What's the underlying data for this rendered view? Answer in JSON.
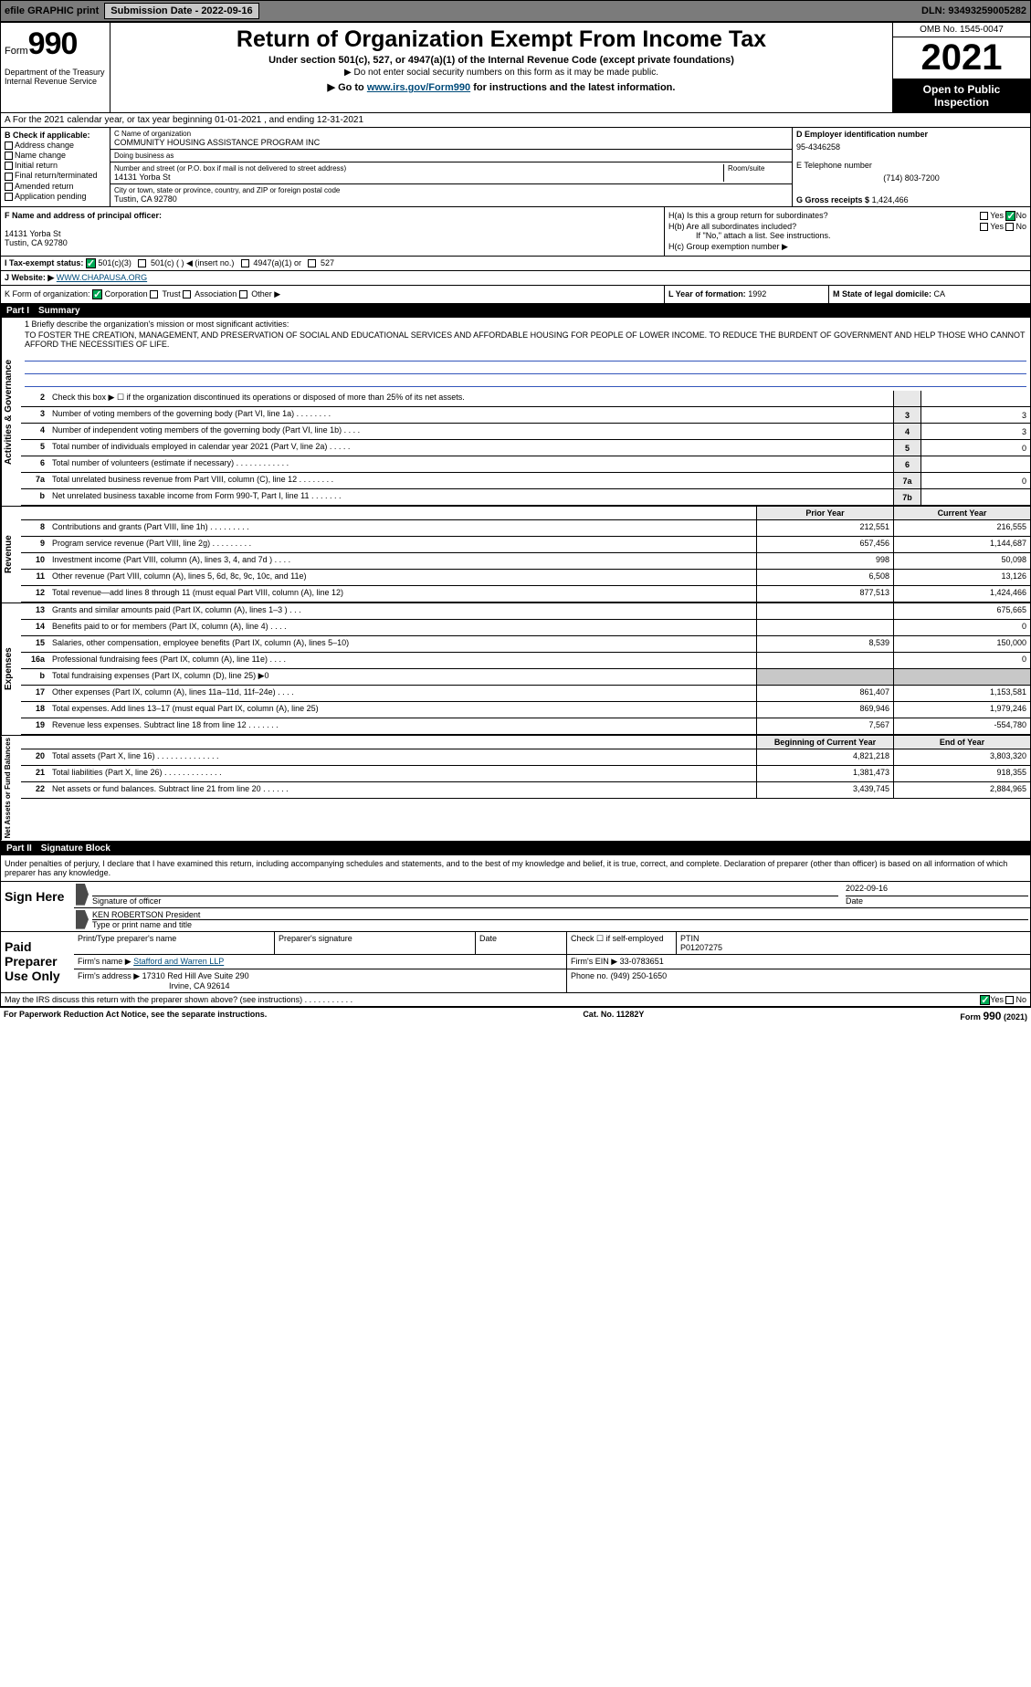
{
  "topbar": {
    "efile": "efile GRAPHIC print",
    "submission_label": "Submission Date - 2022-09-16",
    "dln_label": "DLN: 93493259005282"
  },
  "header": {
    "form_word": "Form",
    "form_num": "990",
    "dept": "Department of the Treasury\nInternal Revenue Service",
    "title": "Return of Organization Exempt From Income Tax",
    "subtitle": "Under section 501(c), 527, or 4947(a)(1) of the Internal Revenue Code (except private foundations)",
    "sub2": "▶ Do not enter social security numbers on this form as it may be made public.",
    "goto_prefix": "▶ Go to ",
    "goto_link": "www.irs.gov/Form990",
    "goto_suffix": " for instructions and the latest information.",
    "omb": "OMB No. 1545-0047",
    "year": "2021",
    "open": "Open to Public Inspection"
  },
  "row_a": "A For the 2021 calendar year, or tax year beginning 01-01-2021    , and ending 12-31-2021",
  "col_b": {
    "header": "B Check if applicable:",
    "items": [
      "Address change",
      "Name change",
      "Initial return",
      "Final return/terminated",
      "Amended return",
      "Application pending"
    ]
  },
  "col_c": {
    "name_label": "C Name of organization",
    "name": "COMMUNITY HOUSING ASSISTANCE PROGRAM INC",
    "dba_label": "Doing business as",
    "dba": "",
    "street_label": "Number and street (or P.O. box if mail is not delivered to street address)",
    "room_label": "Room/suite",
    "street": "14131 Yorba St",
    "city_label": "City or town, state or province, country, and ZIP or foreign postal code",
    "city": "Tustin, CA  92780"
  },
  "col_d": {
    "ein_label": "D Employer identification number",
    "ein": "95-4346258",
    "phone_label": "E Telephone number",
    "phone": "(714) 803-7200",
    "gross_label": "G Gross receipts $",
    "gross": "1,424,466"
  },
  "row_f": {
    "f_label": "F Name and address of principal officer:",
    "f_addr1": "14131 Yorba St",
    "f_addr2": "Tustin, CA  92780",
    "ha": "H(a)  Is this a group return for subordinates?",
    "hb": "H(b)  Are all subordinates included?",
    "hb_note": "If \"No,\" attach a list. See instructions.",
    "hc": "H(c)  Group exemption number ▶",
    "yes": "Yes",
    "no": "No"
  },
  "row_i": {
    "label": "I  Tax-exempt status:",
    "opt1": "501(c)(3)",
    "opt2": "501(c) (   ) ◀ (insert no.)",
    "opt3": "4947(a)(1) or",
    "opt4": "527"
  },
  "row_j": {
    "label": "J  Website: ▶",
    "value": "WWW.CHAPAUSA.ORG"
  },
  "row_k": {
    "label": "K Form of organization:",
    "corp": "Corporation",
    "trust": "Trust",
    "assoc": "Association",
    "other": "Other ▶"
  },
  "row_l": {
    "label": "L Year of formation:",
    "value": "1992"
  },
  "row_m": {
    "label": "M State of legal domicile:",
    "value": "CA"
  },
  "part1": {
    "num": "Part I",
    "title": "Summary"
  },
  "mission": {
    "label": "1  Briefly describe the organization's mission or most significant activities:",
    "text": "TO FOSTER THE CREATION, MANAGEMENT, AND PRESERVATION OF SOCIAL AND EDUCATIONAL SERVICES AND AFFORDABLE HOUSING FOR PEOPLE OF LOWER INCOME. TO REDUCE THE BURDENT OF GOVERNMENT AND HELP THOSE WHO CANNOT AFFORD THE NECESSITIES OF LIFE."
  },
  "gov_lines": [
    {
      "n": "2",
      "t": "Check this box ▶ ☐ if the organization discontinued its operations or disposed of more than 25% of its net assets.",
      "box": "",
      "v": ""
    },
    {
      "n": "3",
      "t": "Number of voting members of the governing body (Part VI, line 1a)   .    .    .    .    .    .    .    .",
      "box": "3",
      "v": "3"
    },
    {
      "n": "4",
      "t": "Number of independent voting members of the governing body (Part VI, line 1b)   .    .    .    .",
      "box": "4",
      "v": "3"
    },
    {
      "n": "5",
      "t": "Total number of individuals employed in calendar year 2021 (Part V, line 2a)   .    .    .    .    .",
      "box": "5",
      "v": "0"
    },
    {
      "n": "6",
      "t": "Total number of volunteers (estimate if necessary)   .    .    .    .    .    .    .    .    .    .    .    .",
      "box": "6",
      "v": ""
    },
    {
      "n": "7a",
      "t": "Total unrelated business revenue from Part VIII, column (C), line 12   .    .    .    .    .    .    .    .",
      "box": "7a",
      "v": "0"
    },
    {
      "n": "b",
      "t": "Net unrelated business taxable income from Form 990-T, Part I, line 11   .    .    .    .    .    .    .",
      "box": "7b",
      "v": ""
    }
  ],
  "prior_year": "Prior Year",
  "current_year": "Current Year",
  "revenue_lines": [
    {
      "n": "8",
      "t": "Contributions and grants (Part VIII, line 1h)   .    .    .    .    .    .    .    .    .",
      "py": "212,551",
      "cy": "216,555"
    },
    {
      "n": "9",
      "t": "Program service revenue (Part VIII, line 2g)   .    .    .    .    .    .    .    .    .",
      "py": "657,456",
      "cy": "1,144,687"
    },
    {
      "n": "10",
      "t": "Investment income (Part VIII, column (A), lines 3, 4, and 7d )   .    .    .    .",
      "py": "998",
      "cy": "50,098"
    },
    {
      "n": "11",
      "t": "Other revenue (Part VIII, column (A), lines 5, 6d, 8c, 9c, 10c, and 11e)",
      "py": "6,508",
      "cy": "13,126"
    },
    {
      "n": "12",
      "t": "Total revenue—add lines 8 through 11 (must equal Part VIII, column (A), line 12)",
      "py": "877,513",
      "cy": "1,424,466"
    }
  ],
  "expense_lines": [
    {
      "n": "13",
      "t": "Grants and similar amounts paid (Part IX, column (A), lines 1–3 )   .    .    .",
      "py": "",
      "cy": "675,665"
    },
    {
      "n": "14",
      "t": "Benefits paid to or for members (Part IX, column (A), line 4)   .    .    .    .",
      "py": "",
      "cy": "0"
    },
    {
      "n": "15",
      "t": "Salaries, other compensation, employee benefits (Part IX, column (A), lines 5–10)",
      "py": "8,539",
      "cy": "150,000"
    },
    {
      "n": "16a",
      "t": "Professional fundraising fees (Part IX, column (A), line 11e)   .    .    .    .",
      "py": "",
      "cy": "0"
    },
    {
      "n": "b",
      "t": "Total fundraising expenses (Part IX, column (D), line 25) ▶0",
      "py": "grey",
      "cy": "grey"
    },
    {
      "n": "17",
      "t": "Other expenses (Part IX, column (A), lines 11a–11d, 11f–24e)   .    .    .    .",
      "py": "861,407",
      "cy": "1,153,581"
    },
    {
      "n": "18",
      "t": "Total expenses. Add lines 13–17 (must equal Part IX, column (A), line 25)",
      "py": "869,946",
      "cy": "1,979,246"
    },
    {
      "n": "19",
      "t": "Revenue less expenses. Subtract line 18 from line 12   .    .    .    .    .    .    .",
      "py": "7,567",
      "cy": "-554,780"
    }
  ],
  "boy": "Beginning of Current Year",
  "eoy": "End of Year",
  "net_lines": [
    {
      "n": "20",
      "t": "Total assets (Part X, line 16)   .    .    .    .    .    .    .    .    .    .    .    .    .    .",
      "py": "4,821,218",
      "cy": "3,803,320"
    },
    {
      "n": "21",
      "t": "Total liabilities (Part X, line 26)   .    .    .    .    .    .    .    .    .    .    .    .    .",
      "py": "1,381,473",
      "cy": "918,355"
    },
    {
      "n": "22",
      "t": "Net assets or fund balances. Subtract line 21 from line 20   .    .    .    .    .    .",
      "py": "3,439,745",
      "cy": "2,884,965"
    }
  ],
  "part2": {
    "num": "Part II",
    "title": "Signature Block"
  },
  "sig": {
    "intro": "Under penalties of perjury, I declare that I have examined this return, including accompanying schedules and statements, and to the best of my knowledge and belief, it is true, correct, and complete. Declaration of preparer (other than officer) is based on all information of which preparer has any knowledge.",
    "sign_here": "Sign Here",
    "sig_officer": "Signature of officer",
    "date": "2022-09-16",
    "date_label": "Date",
    "name": "KEN ROBERTSON President",
    "name_label": "Type or print name and title"
  },
  "prep": {
    "label": "Paid Preparer Use Only",
    "h1": "Print/Type preparer's name",
    "h2": "Preparer's signature",
    "h3": "Date",
    "h4": "Check ☐ if self-employed",
    "h5": "PTIN",
    "ptin": "P01207275",
    "firm_label": "Firm's name    ▶",
    "firm": "Stafford and Warren LLP",
    "ein_label": "Firm's EIN ▶",
    "ein": "33-0783651",
    "addr_label": "Firm's address ▶",
    "addr1": "17310 Red Hill Ave Suite 290",
    "addr2": "Irvine, CA  92614",
    "phone_label": "Phone no.",
    "phone": "(949) 250-1650"
  },
  "discuss": "May the IRS discuss this return with the preparer shown above? (see instructions)   .    .    .    .    .    .    .    .    .    .    .",
  "footer": {
    "left": "For Paperwork Reduction Act Notice, see the separate instructions.",
    "mid": "Cat. No. 11282Y",
    "right": "Form 990 (2021)"
  },
  "vtabs": {
    "gov": "Activities & Governance",
    "rev": "Revenue",
    "exp": "Expenses",
    "net": "Net Assets or Fund Balances"
  }
}
